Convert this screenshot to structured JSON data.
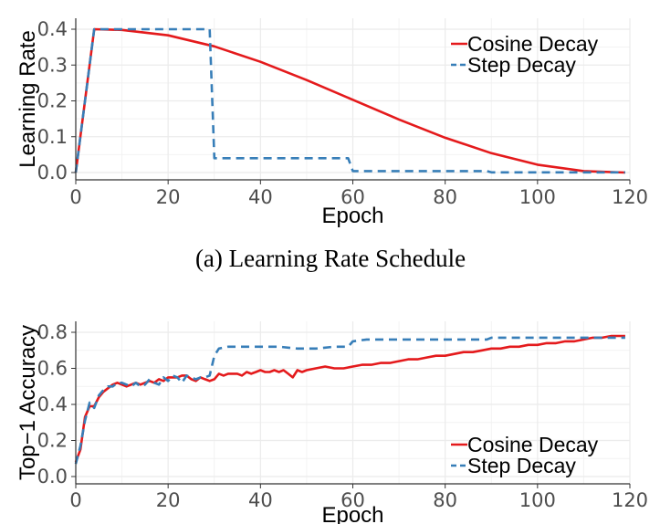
{
  "colors": {
    "cosine": "#e41a1c",
    "step": "#377eb8",
    "grid": "#ebebeb",
    "axis": "#333333"
  },
  "chart_data": [
    {
      "type": "line",
      "panel": "top",
      "caption": "(a) Learning Rate Schedule",
      "xlabel": "Epoch",
      "ylabel": "Learning Rate",
      "xlim": [
        0,
        120
      ],
      "ylim": [
        0,
        0.4
      ],
      "xticks": [
        0,
        20,
        40,
        60,
        80,
        100,
        120
      ],
      "yticks": [
        0.0,
        0.1,
        0.2,
        0.3,
        0.4
      ],
      "ytick_labels": [
        "0.0",
        "0.1",
        "0.2",
        "0.3",
        "0.4"
      ],
      "xtick_labels": [
        "0",
        "20",
        "40",
        "60",
        "80",
        "100",
        "120"
      ],
      "legend": {
        "position": "top-right",
        "entries": [
          "Cosine Decay",
          "Step Decay"
        ]
      },
      "series": [
        {
          "name": "Cosine Decay",
          "style": "solid",
          "x": [
            0,
            4,
            10,
            20,
            30,
            40,
            50,
            60,
            70,
            80,
            90,
            100,
            110,
            119
          ],
          "y": [
            0.0,
            0.4,
            0.398,
            0.383,
            0.352,
            0.309,
            0.258,
            0.203,
            0.148,
            0.097,
            0.054,
            0.022,
            0.004,
            0.0
          ]
        },
        {
          "name": "Step Decay",
          "style": "dashed",
          "x": [
            0,
            4,
            29,
            30,
            59,
            60,
            89,
            90,
            119
          ],
          "y": [
            0.0,
            0.4,
            0.4,
            0.04,
            0.04,
            0.004,
            0.004,
            0.0004,
            0.0004
          ]
        }
      ]
    },
    {
      "type": "line",
      "panel": "bottom",
      "xlabel": "Epoch",
      "ylabel": "Top−1 Accuracy",
      "xlim": [
        0,
        120
      ],
      "ylim": [
        0,
        0.8
      ],
      "xticks": [
        0,
        20,
        40,
        60,
        80,
        100,
        120
      ],
      "yticks": [
        0.0,
        0.2,
        0.4,
        0.6,
        0.8
      ],
      "ytick_labels": [
        "0.0",
        "0.2",
        "0.4",
        "0.6",
        "0.8"
      ],
      "xtick_labels": [
        "0",
        "20",
        "40",
        "60",
        "80",
        "100",
        "120"
      ],
      "legend": {
        "position": "bottom-right",
        "entries": [
          "Cosine Decay",
          "Step Decay"
        ]
      },
      "series": [
        {
          "name": "Cosine Decay",
          "style": "solid",
          "x": [
            0,
            1,
            2,
            3,
            4,
            5,
            6,
            7,
            8,
            9,
            10,
            11,
            12,
            13,
            14,
            15,
            16,
            17,
            18,
            19,
            20,
            21,
            22,
            23,
            24,
            25,
            26,
            27,
            28,
            29,
            30,
            31,
            32,
            33,
            34,
            35,
            36,
            37,
            38,
            39,
            40,
            41,
            42,
            43,
            44,
            45,
            46,
            47,
            48,
            49,
            50,
            52,
            54,
            56,
            58,
            60,
            62,
            64,
            66,
            68,
            70,
            72,
            74,
            76,
            78,
            80,
            82,
            84,
            86,
            88,
            90,
            92,
            94,
            96,
            98,
            100,
            102,
            104,
            106,
            108,
            110,
            112,
            114,
            116,
            119
          ],
          "y": [
            0.08,
            0.15,
            0.33,
            0.39,
            0.39,
            0.44,
            0.47,
            0.49,
            0.51,
            0.52,
            0.51,
            0.5,
            0.51,
            0.52,
            0.51,
            0.52,
            0.53,
            0.52,
            0.54,
            0.53,
            0.55,
            0.55,
            0.55,
            0.56,
            0.56,
            0.54,
            0.53,
            0.55,
            0.54,
            0.53,
            0.54,
            0.57,
            0.56,
            0.57,
            0.57,
            0.57,
            0.56,
            0.58,
            0.57,
            0.58,
            0.59,
            0.58,
            0.58,
            0.59,
            0.58,
            0.59,
            0.57,
            0.55,
            0.59,
            0.58,
            0.59,
            0.6,
            0.61,
            0.6,
            0.6,
            0.61,
            0.62,
            0.62,
            0.63,
            0.63,
            0.64,
            0.65,
            0.65,
            0.66,
            0.67,
            0.67,
            0.68,
            0.69,
            0.69,
            0.7,
            0.71,
            0.71,
            0.72,
            0.72,
            0.73,
            0.73,
            0.74,
            0.74,
            0.75,
            0.75,
            0.76,
            0.77,
            0.77,
            0.78,
            0.78
          ]
        },
        {
          "name": "Step Decay",
          "style": "dashed",
          "x": [
            0,
            1,
            2,
            3,
            4,
            5,
            6,
            7,
            8,
            9,
            10,
            11,
            12,
            13,
            14,
            15,
            16,
            17,
            18,
            19,
            20,
            21,
            22,
            23,
            24,
            25,
            26,
            27,
            28,
            29,
            30,
            31,
            33,
            36,
            40,
            44,
            48,
            52,
            56,
            59,
            60,
            63,
            70,
            80,
            89,
            90,
            100,
            110,
            119
          ],
          "y": [
            0.07,
            0.17,
            0.31,
            0.41,
            0.38,
            0.45,
            0.48,
            0.5,
            0.5,
            0.52,
            0.52,
            0.51,
            0.5,
            0.52,
            0.5,
            0.51,
            0.54,
            0.52,
            0.51,
            0.55,
            0.53,
            0.56,
            0.55,
            0.52,
            0.56,
            0.55,
            0.54,
            0.55,
            0.55,
            0.56,
            0.67,
            0.71,
            0.72,
            0.72,
            0.72,
            0.72,
            0.71,
            0.71,
            0.72,
            0.72,
            0.75,
            0.76,
            0.76,
            0.76,
            0.76,
            0.77,
            0.77,
            0.77,
            0.77
          ]
        }
      ]
    }
  ]
}
